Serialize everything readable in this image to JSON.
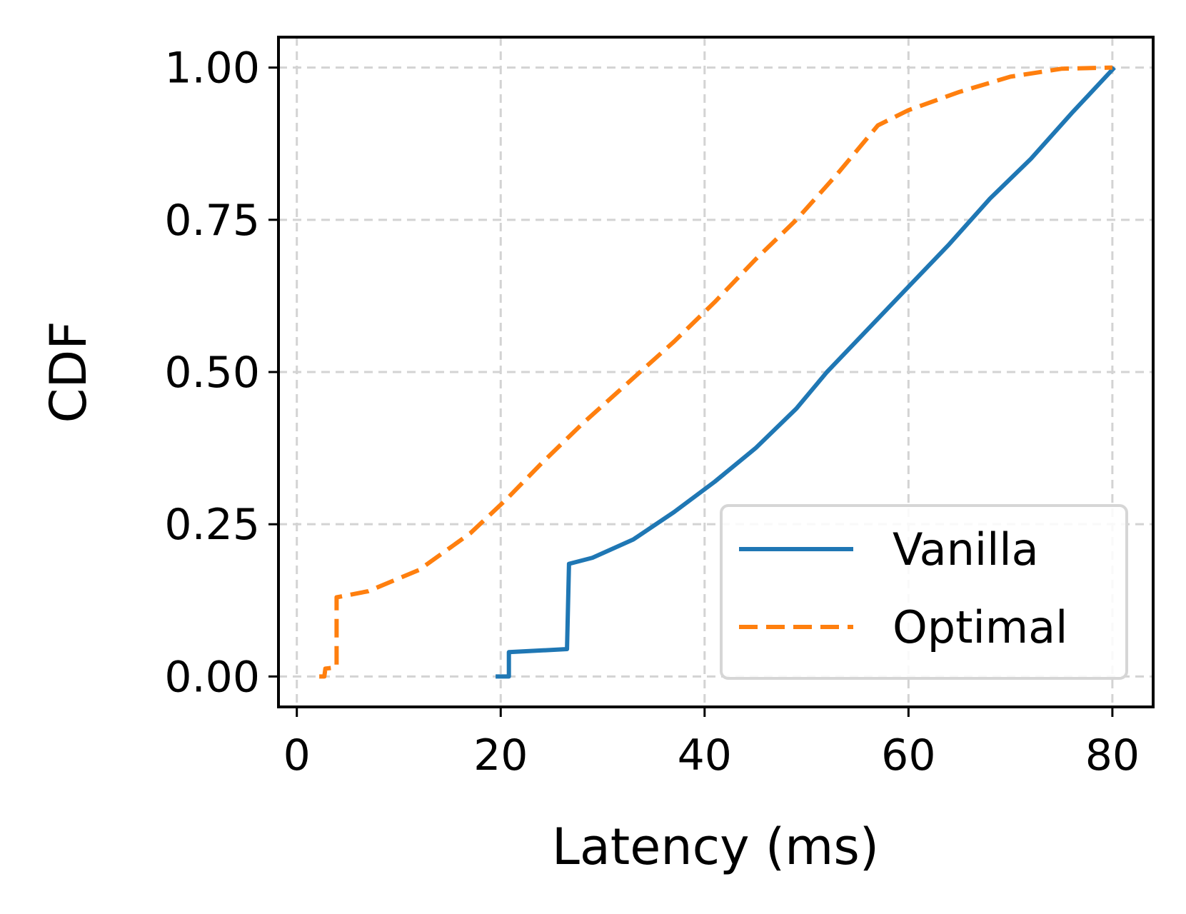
{
  "chart_data": {
    "type": "line",
    "title": "",
    "xlabel": "Latency (ms)",
    "ylabel": "CDF",
    "xlim": [
      -1.8,
      84
    ],
    "ylim": [
      -0.05,
      1.05
    ],
    "xticks": [
      0,
      20,
      40,
      60,
      80
    ],
    "xtick_labels": [
      "0",
      "20",
      "40",
      "60",
      "80"
    ],
    "yticks": [
      0.0,
      0.25,
      0.5,
      0.75,
      1.0
    ],
    "ytick_labels": [
      "0.00",
      "0.25",
      "0.50",
      "0.75",
      "1.00"
    ],
    "grid": true,
    "legend_position": "lower-right",
    "series": [
      {
        "name": "Vanilla",
        "color": "#1f77b4",
        "style": "solid",
        "x": [
          19.5,
          20.8,
          20.8,
          26.5,
          26.7,
          29,
          33,
          37,
          41,
          45,
          49,
          52,
          56,
          60,
          64,
          68,
          72,
          76,
          80.2
        ],
        "y": [
          0.0,
          0.0,
          0.04,
          0.045,
          0.185,
          0.195,
          0.225,
          0.27,
          0.32,
          0.375,
          0.44,
          0.5,
          0.57,
          0.64,
          0.71,
          0.785,
          0.85,
          0.925,
          1.0
        ]
      },
      {
        "name": "Optimal",
        "color": "#ff7f0e",
        "style": "dashed",
        "x": [
          2.2,
          2.7,
          2.8,
          3.9,
          3.9,
          7,
          12,
          17,
          20.5,
          24,
          28,
          33,
          37,
          41,
          45,
          49,
          53,
          57,
          60,
          65,
          70,
          75,
          80
        ],
        "y": [
          0.0,
          0.0,
          0.013,
          0.015,
          0.13,
          0.14,
          0.175,
          0.235,
          0.29,
          0.35,
          0.415,
          0.49,
          0.55,
          0.615,
          0.685,
          0.75,
          0.825,
          0.905,
          0.93,
          0.96,
          0.985,
          0.998,
          1.0
        ]
      }
    ]
  }
}
